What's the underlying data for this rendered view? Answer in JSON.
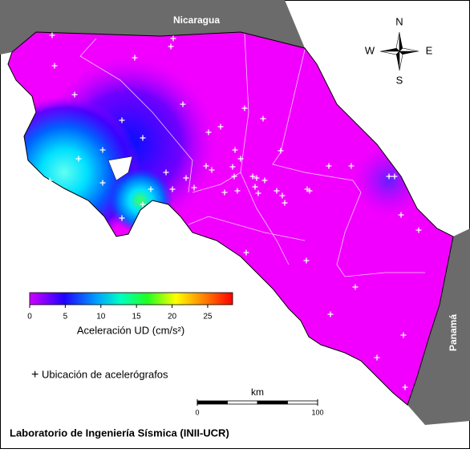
{
  "map": {
    "labels": {
      "nicaragua": "Nicaragua",
      "panama": "Panamá"
    },
    "compass": {
      "n": "N",
      "s": "S",
      "w": "W",
      "e": "E"
    },
    "colorbar": {
      "lim": [
        0,
        28.5
      ],
      "ticks": [
        0,
        5,
        10,
        15,
        20,
        25
      ],
      "label": "Aceleración UD (cm/s²)"
    },
    "legend": "Ubicación de acelerógrafos",
    "scale_bar": {
      "unit": "km",
      "lim": [
        0,
        100
      ],
      "ticks": [
        0,
        100
      ]
    },
    "footer": "Laboratorio de Ingeniería Sísmica (INII-UCR)"
  }
}
